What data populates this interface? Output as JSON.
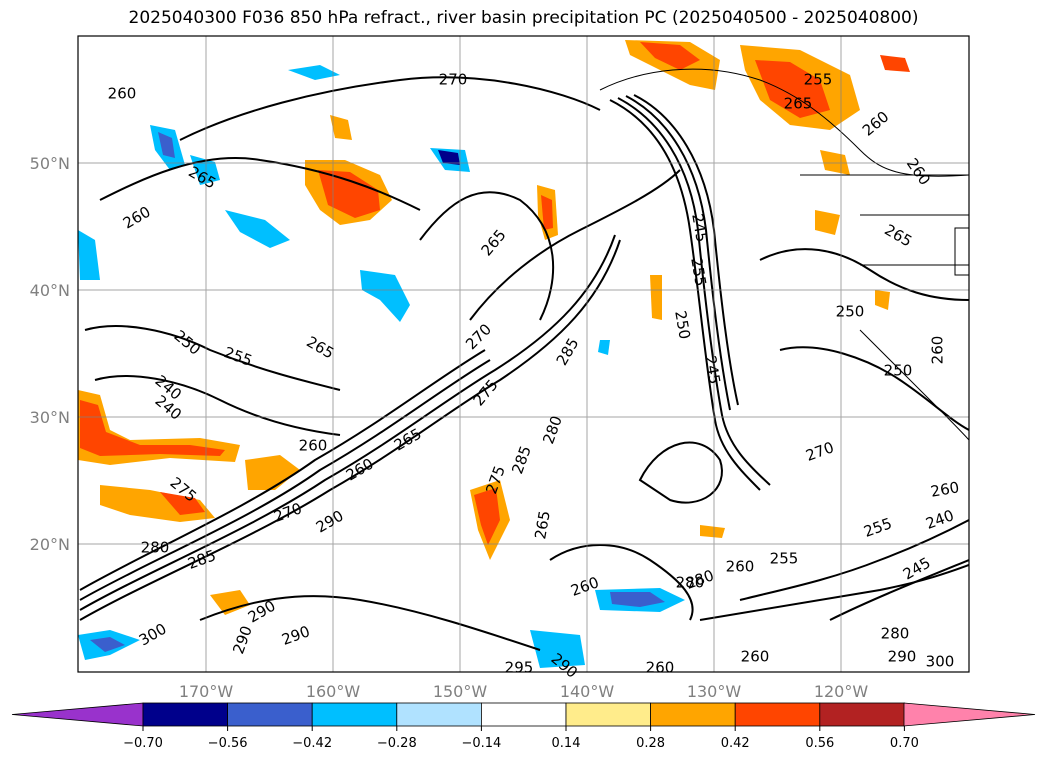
{
  "title": "2025040300 F036 850 hPa refract., river basin precipitation PC (2025040500 - 2025040800)",
  "lat_labels": [
    "50°N",
    "40°N",
    "30°N",
    "20°N"
  ],
  "lon_labels": [
    "170°W",
    "160°W",
    "150°W",
    "140°W",
    "130°W",
    "120°W"
  ],
  "contour_labels": [
    "260",
    "270",
    "255",
    "265",
    "260",
    "265",
    "260",
    "265",
    "260",
    "250",
    "255",
    "265",
    "270",
    "240",
    "275",
    "285",
    "245",
    "255",
    "265",
    "250",
    "260",
    "265",
    "260",
    "275",
    "280",
    "285",
    "265",
    "290",
    "270",
    "280",
    "260",
    "255",
    "260",
    "280",
    "285",
    "290",
    "295",
    "290",
    "300",
    "290",
    "280",
    "260",
    "270",
    "245",
    "240",
    "255",
    "260",
    "250",
    "250",
    "260",
    "260",
    "280",
    "290",
    "300",
    "240",
    "275",
    "245",
    "290"
  ],
  "colorbar": {
    "colors": [
      "#9932cc",
      "#00008b",
      "#3a5fcd",
      "#00bfff",
      "#b0e2ff",
      "#ffffff",
      "#ffec8b",
      "#ffa500",
      "#ff4500",
      "#b22222",
      "#ff82ab"
    ],
    "tick_labels": [
      "−0.70",
      "−0.56",
      "−0.42",
      "−0.28",
      "−0.14",
      "0.14",
      "0.28",
      "0.42",
      "0.56",
      "0.70"
    ]
  },
  "colors": {
    "positive_light": "#ffec8b",
    "positive_mid": "#ffa500",
    "positive_strong": "#ff4500",
    "negative_light": "#b0e2ff",
    "negative_mid": "#00bfff",
    "negative_strong": "#3a5fcd",
    "negative_extreme": "#00008b",
    "grid": "#808080",
    "contour": "#000000"
  }
}
